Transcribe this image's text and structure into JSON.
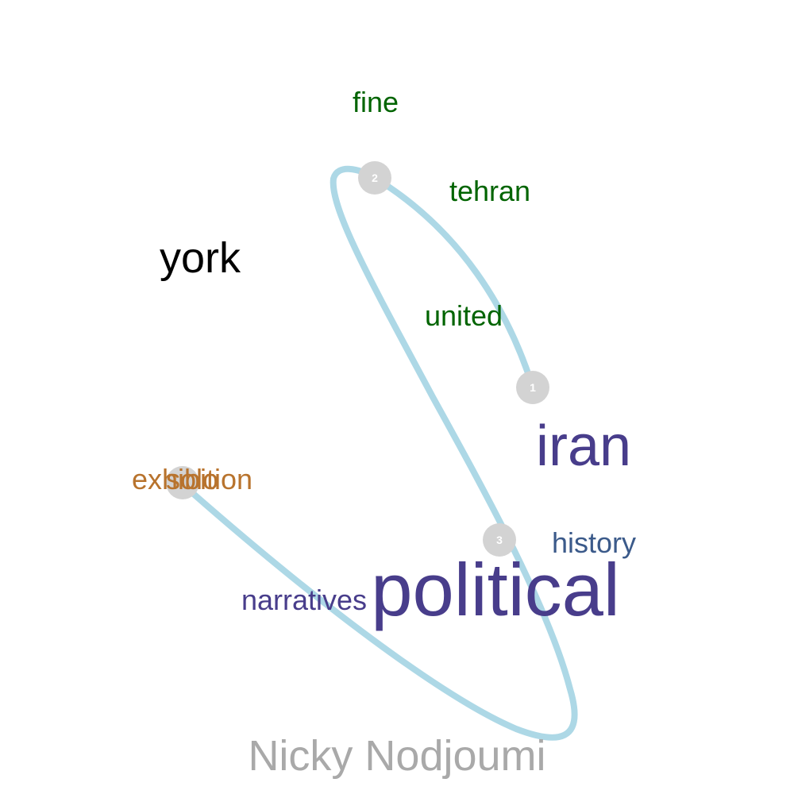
{
  "title": "Nicky Nodjoumi",
  "colors": {
    "path": "#add8e6",
    "node": "#d3d3d3",
    "node_text": "#ffffff",
    "title": "#a9a9a9"
  },
  "words": [
    {
      "text": "fine",
      "color": "#006400"
    },
    {
      "text": "tehran",
      "color": "#006400"
    },
    {
      "text": "york",
      "color": "#000000"
    },
    {
      "text": "united",
      "color": "#006400"
    },
    {
      "text": "iran",
      "color": "#483d8b"
    },
    {
      "text": "exhibition",
      "color": "#b8732d"
    },
    {
      "text": "solo",
      "color": "#b8732d"
    },
    {
      "text": "history",
      "color": "#3b5a8a"
    },
    {
      "text": "narratives",
      "color": "#483d8b"
    },
    {
      "text": "political",
      "color": "#483d8b"
    }
  ],
  "nodes": [
    {
      "label": "1"
    },
    {
      "label": "2"
    },
    {
      "label": "3"
    },
    {
      "label": ""
    }
  ]
}
